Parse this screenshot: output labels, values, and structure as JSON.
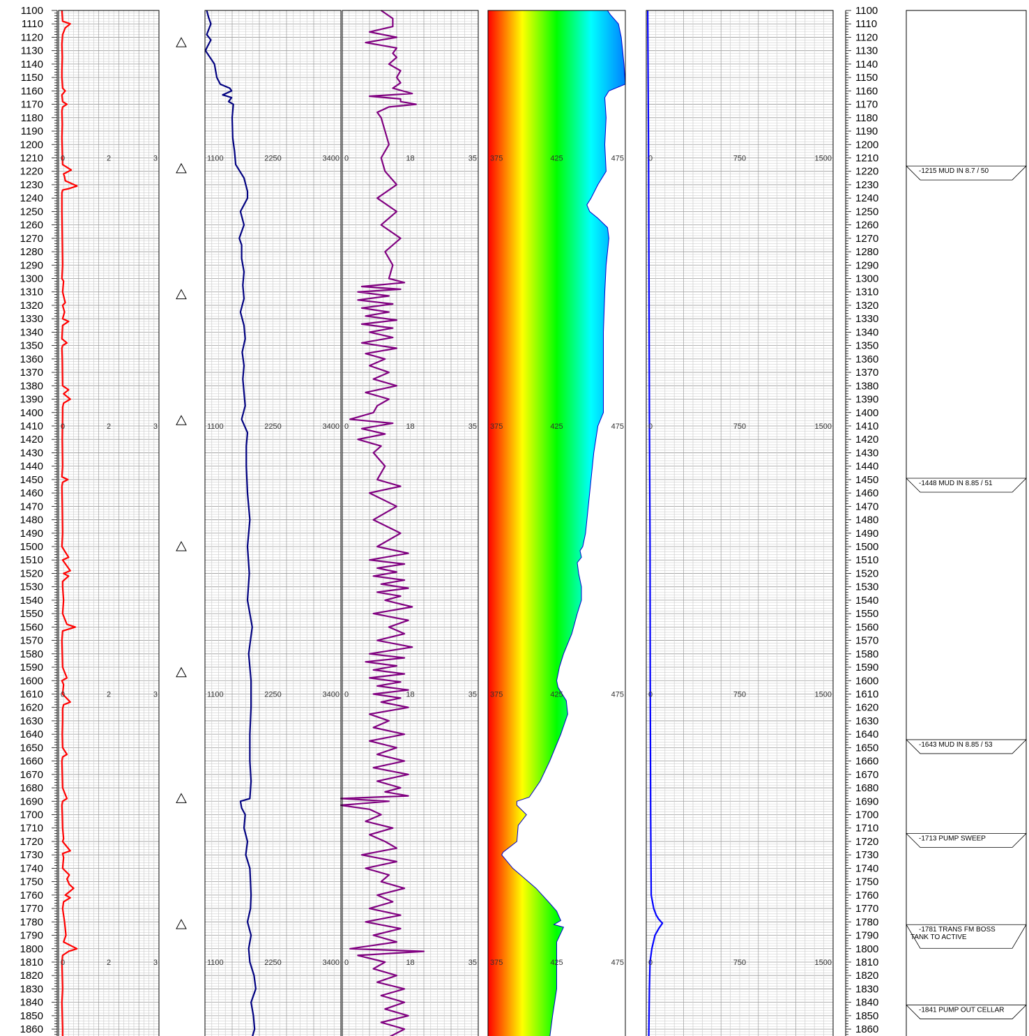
{
  "chart_data": {
    "type": "line",
    "depth_axis": {
      "min": 1100,
      "max": 1868,
      "label_step": 10,
      "labels_left": true,
      "labels_right": true
    },
    "tracks": [
      {
        "id": "track1",
        "scale_min": 0,
        "scale_mid": 2,
        "scale_max": 3,
        "scale_labels": [
          "0",
          "2",
          "3"
        ],
        "color": "#ff0000",
        "depths": [
          1100,
          1108,
          1110,
          1113,
          1118,
          1125,
          1135,
          1145,
          1150,
          1158,
          1160,
          1163,
          1168,
          1170,
          1172,
          1175,
          1185,
          1195,
          1205,
          1215,
          1219,
          1222,
          1224,
          1227,
          1231,
          1233,
          1234,
          1236,
          1250,
          1270,
          1290,
          1300,
          1302,
          1310,
          1318,
          1320,
          1325,
          1330,
          1332,
          1335,
          1345,
          1348,
          1350,
          1352,
          1360,
          1380,
          1383,
          1386,
          1390,
          1393,
          1396,
          1400,
          1420,
          1440,
          1448,
          1450,
          1452,
          1455,
          1470,
          1490,
          1500,
          1508,
          1510,
          1512,
          1518,
          1520,
          1522,
          1526,
          1530,
          1540,
          1550,
          1558,
          1560,
          1563,
          1570,
          1590,
          1598,
          1600,
          1603,
          1610,
          1616,
          1618,
          1621,
          1630,
          1640,
          1650,
          1655,
          1657,
          1660,
          1670,
          1680,
          1688,
          1690,
          1693,
          1700,
          1710,
          1718,
          1720,
          1727,
          1729,
          1732,
          1740,
          1745,
          1748,
          1752,
          1755,
          1760,
          1762,
          1765,
          1770,
          1780,
          1790,
          1795,
          1800,
          1802,
          1805,
          1810,
          1820,
          1830,
          1840,
          1850,
          1860,
          1866,
          1868
        ],
        "values": [
          0.1,
          0.12,
          0.35,
          0.2,
          0.12,
          0.1,
          0.11,
          0.1,
          0.1,
          0.12,
          0.2,
          0.1,
          0.12,
          0.25,
          0.12,
          0.1,
          0.11,
          0.1,
          0.11,
          0.12,
          0.38,
          0.15,
          0.18,
          0.2,
          0.55,
          0.3,
          0.12,
          0.1,
          0.1,
          0.11,
          0.12,
          0.1,
          0.15,
          0.12,
          0.2,
          0.12,
          0.18,
          0.12,
          0.3,
          0.12,
          0.1,
          0.25,
          0.12,
          0.1,
          0.11,
          0.12,
          0.3,
          0.15,
          0.35,
          0.15,
          0.12,
          0.12,
          0.11,
          0.12,
          0.1,
          0.28,
          0.12,
          0.1,
          0.11,
          0.12,
          0.1,
          0.3,
          0.12,
          0.18,
          0.35,
          0.15,
          0.3,
          0.12,
          0.12,
          0.15,
          0.12,
          0.25,
          0.5,
          0.12,
          0.1,
          0.12,
          0.25,
          0.1,
          0.15,
          0.12,
          0.35,
          0.15,
          0.12,
          0.12,
          0.11,
          0.12,
          0.25,
          0.12,
          0.1,
          0.11,
          0.12,
          0.25,
          0.12,
          0.1,
          0.11,
          0.12,
          0.15,
          0.12,
          0.35,
          0.12,
          0.15,
          0.12,
          0.32,
          0.25,
          0.32,
          0.45,
          0.2,
          0.35,
          0.15,
          0.12,
          0.18,
          0.22,
          0.15,
          0.55,
          0.3,
          0.12,
          0.1,
          0.11,
          0.12,
          0.1,
          0.11,
          0.12,
          0.12,
          0.1
        ]
      },
      {
        "id": "track2",
        "scale_min": 1100,
        "scale_mid": 2250,
        "scale_max": 3400,
        "scale_labels": [
          "1100",
          "2250",
          "3400"
        ],
        "color": "#000080",
        "depths": [
          1100,
          1105,
          1110,
          1118,
          1122,
          1128,
          1130,
          1140,
          1150,
          1155,
          1158,
          1160,
          1163,
          1165,
          1168,
          1170,
          1180,
          1195,
          1205,
          1215,
          1225,
          1235,
          1240,
          1250,
          1260,
          1270,
          1275,
          1285,
          1295,
          1305,
          1315,
          1325,
          1335,
          1345,
          1355,
          1365,
          1375,
          1385,
          1395,
          1405,
          1415,
          1425,
          1440,
          1460,
          1480,
          1500,
          1520,
          1540,
          1560,
          1580,
          1590,
          1600,
          1620,
          1640,
          1660,
          1675,
          1688,
          1690,
          1695,
          1700,
          1710,
          1720,
          1730,
          1740,
          1750,
          1760,
          1770,
          1780,
          1790,
          1800,
          1810,
          1820,
          1830,
          1840,
          1850,
          1860,
          1866
        ],
        "values": [
          1130,
          1160,
          1200,
          1130,
          1200,
          1130,
          1110,
          1260,
          1300,
          1360,
          1520,
          1550,
          1400,
          1550,
          1500,
          1580,
          1560,
          1570,
          1600,
          1620,
          1760,
          1820,
          1820,
          1700,
          1760,
          1680,
          1720,
          1720,
          1760,
          1740,
          1760,
          1700,
          1760,
          1780,
          1730,
          1760,
          1740,
          1760,
          1780,
          1720,
          1820,
          1800,
          1800,
          1820,
          1860,
          1820,
          1850,
          1820,
          1900,
          1840,
          1860,
          1880,
          1880,
          1860,
          1860,
          1880,
          1860,
          1700,
          1720,
          1780,
          1760,
          1820,
          1790,
          1860,
          1870,
          1880,
          1870,
          1820,
          1880,
          1840,
          1860,
          1930,
          1960,
          1880,
          1920,
          1940,
          1900
        ]
      },
      {
        "id": "track3",
        "scale_min": 0,
        "scale_mid": 18,
        "scale_max": 35,
        "scale_labels": [
          "0",
          "18",
          "35"
        ],
        "color": "#800080",
        "depths": [
          1100,
          1106,
          1112,
          1116,
          1120,
          1124,
          1128,
          1132,
          1135,
          1140,
          1145,
          1150,
          1154,
          1158,
          1162,
          1164,
          1166,
          1168,
          1170,
          1172,
          1176,
          1180,
          1190,
          1200,
          1210,
          1220,
          1230,
          1240,
          1250,
          1260,
          1270,
          1280,
          1290,
          1300,
          1303,
          1306,
          1308,
          1310,
          1313,
          1316,
          1319,
          1322,
          1325,
          1328,
          1331,
          1334,
          1337,
          1340,
          1344,
          1348,
          1352,
          1356,
          1360,
          1365,
          1370,
          1375,
          1380,
          1385,
          1390,
          1395,
          1400,
          1405,
          1408,
          1412,
          1416,
          1420,
          1425,
          1430,
          1440,
          1450,
          1455,
          1460,
          1470,
          1480,
          1490,
          1500,
          1505,
          1510,
          1513,
          1516,
          1519,
          1522,
          1525,
          1528,
          1531,
          1534,
          1537,
          1540,
          1545,
          1550,
          1555,
          1560,
          1565,
          1570,
          1575,
          1580,
          1583,
          1586,
          1589,
          1592,
          1595,
          1598,
          1601,
          1604,
          1607,
          1610,
          1613,
          1616,
          1620,
          1625,
          1630,
          1635,
          1640,
          1645,
          1650,
          1655,
          1660,
          1665,
          1670,
          1675,
          1680,
          1683,
          1686,
          1688,
          1690,
          1693,
          1696,
          1700,
          1705,
          1710,
          1715,
          1720,
          1725,
          1730,
          1735,
          1740,
          1745,
          1750,
          1755,
          1760,
          1765,
          1770,
          1775,
          1780,
          1785,
          1790,
          1795,
          1800,
          1802,
          1805,
          1810,
          1815,
          1820,
          1825,
          1830,
          1835,
          1840,
          1845,
          1850,
          1855,
          1860,
          1866
        ],
        "values": [
          10,
          13,
          13,
          7,
          14,
          6,
          14,
          13,
          14,
          12,
          15,
          14,
          15,
          13,
          18,
          7,
          15,
          15,
          19,
          12,
          9,
          10,
          11,
          12,
          10,
          11,
          14,
          9,
          14,
          10,
          15,
          11,
          13,
          12,
          16,
          5,
          15,
          4,
          12,
          4,
          13,
          5,
          12,
          6,
          14,
          5,
          13,
          7,
          13,
          5,
          14,
          6,
          11,
          7,
          12,
          8,
          14,
          6,
          12,
          9,
          8,
          2,
          13,
          5,
          11,
          4,
          10,
          8,
          11,
          9,
          15,
          7,
          14,
          8,
          15,
          9,
          17,
          7,
          16,
          9,
          14,
          8,
          16,
          10,
          17,
          9,
          15,
          11,
          18,
          8,
          17,
          12,
          16,
          9,
          18,
          7,
          16,
          6,
          14,
          8,
          16,
          7,
          15,
          9,
          17,
          8,
          15,
          10,
          17,
          7,
          12,
          8,
          16,
          7,
          14,
          9,
          16,
          8,
          17,
          9,
          15,
          11,
          17,
          -1,
          12,
          -1,
          7,
          10,
          6,
          13,
          7,
          11,
          14,
          5,
          14,
          6,
          12,
          10,
          16,
          9,
          13,
          7,
          15,
          6,
          15,
          8,
          14,
          2,
          21,
          4,
          11,
          8,
          14,
          9,
          16,
          10,
          16,
          11,
          17,
          10,
          16,
          12,
          17
        ]
      },
      {
        "id": "track4",
        "scale_min": 375,
        "scale_mid": 425,
        "scale_max": 475,
        "scale_labels": [
          "375",
          "425",
          "475"
        ],
        "fill": "gradient",
        "gradient_colors": [
          "#ff0000",
          "#ffff00",
          "#00ff00",
          "#00ffff",
          "#0080ff"
        ],
        "depths": [
          1100,
          1103,
          1110,
          1115,
          1120,
          1130,
          1140,
          1155,
          1160,
          1165,
          1180,
          1200,
          1220,
          1230,
          1240,
          1245,
          1250,
          1255,
          1262,
          1270,
          1290,
          1310,
          1340,
          1370,
          1400,
          1410,
          1430,
          1460,
          1490,
          1500,
          1503,
          1508,
          1512,
          1520,
          1530,
          1540,
          1550,
          1565,
          1580,
          1590,
          1600,
          1605,
          1615,
          1625,
          1640,
          1660,
          1675,
          1687,
          1690,
          1693,
          1700,
          1708,
          1720,
          1728,
          1730,
          1740,
          1755,
          1765,
          1772,
          1779,
          1782,
          1784,
          1795,
          1810,
          1830,
          1850,
          1866
        ],
        "values": [
          462,
          464,
          470,
          471,
          472,
          473,
          474,
          475,
          463,
          460,
          461,
          460,
          461,
          455,
          450,
          447,
          449,
          455,
          462,
          463,
          461,
          460,
          459,
          459,
          459,
          455,
          452,
          449,
          446,
          444,
          442,
          443,
          440,
          441,
          443,
          443,
          440,
          436,
          430,
          427,
          425,
          426,
          432,
          433,
          428,
          420,
          413,
          405,
          396,
          396,
          403,
          397,
          396,
          386,
          385,
          393,
          410,
          419,
          425,
          428,
          423,
          430,
          425,
          425,
          425,
          422,
          420
        ]
      },
      {
        "id": "track5",
        "scale_min": 0,
        "scale_mid": 750,
        "scale_max": 1500,
        "scale_labels": [
          "0",
          "750",
          "1500"
        ],
        "color": "#0000ff",
        "depths": [
          1100,
          1200,
          1300,
          1400,
          1500,
          1600,
          1700,
          1760,
          1770,
          1775,
          1778,
          1781,
          1785,
          1790,
          1800,
          1810,
          1830,
          1866
        ],
        "values": [
          12,
          18,
          22,
          25,
          30,
          32,
          35,
          40,
          60,
          80,
          100,
          130,
          100,
          70,
          45,
          30,
          25,
          20
        ]
      }
    ],
    "markers": {
      "symbol": "△",
      "depths": [
        1124,
        1218,
        1312,
        1406,
        1500,
        1594,
        1688,
        1782
      ]
    },
    "remarks": [
      {
        "depth": 1215,
        "text": "-1215 MUD IN 8.7 / 50"
      },
      {
        "depth": 1448,
        "text": "-1448 MUD IN 8.85 / 51"
      },
      {
        "depth": 1643,
        "text": "-1643 MUD IN 8.85 / 53"
      },
      {
        "depth": 1713,
        "text": "-1713 PUMP SWEEP"
      },
      {
        "depth": 1781,
        "text": "-1781 TRANS FM BOSS",
        "text2": "TANK TO ACTIVE"
      },
      {
        "depth": 1841,
        "text": "-1841 PUMP OUT CELLAR"
      }
    ],
    "grid": true
  }
}
